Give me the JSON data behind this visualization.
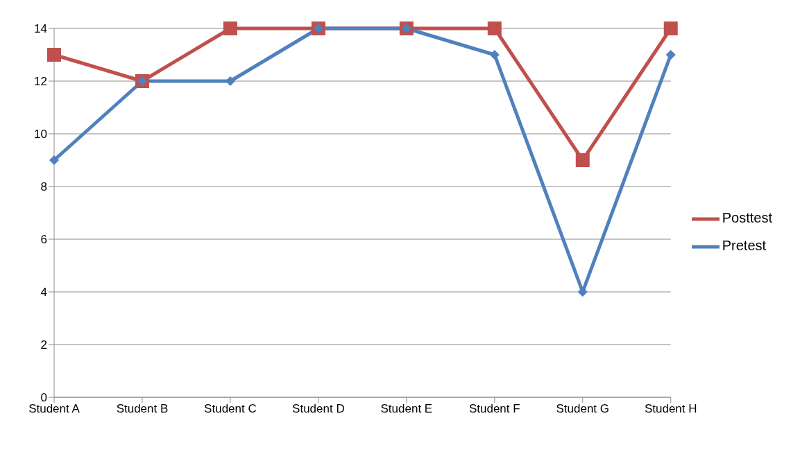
{
  "chart_data": {
    "type": "line",
    "categories": [
      "Student A",
      "Student B",
      "Student C",
      "Student D",
      "Student E",
      "Student F",
      "Student G",
      "Student H"
    ],
    "series": [
      {
        "name": "Posttest",
        "color": "#c0504d",
        "marker": "square",
        "values": [
          13,
          12,
          14,
          14,
          14,
          14,
          9,
          14
        ]
      },
      {
        "name": "Pretest",
        "color": "#4f81bd",
        "marker": "diamond",
        "values": [
          9,
          12,
          12,
          14,
          14,
          13,
          4,
          13
        ]
      }
    ],
    "ylim": [
      0,
      14
    ],
    "yticks": [
      0,
      2,
      4,
      6,
      8,
      10,
      12,
      14
    ],
    "grid": "y",
    "legend": "right"
  }
}
